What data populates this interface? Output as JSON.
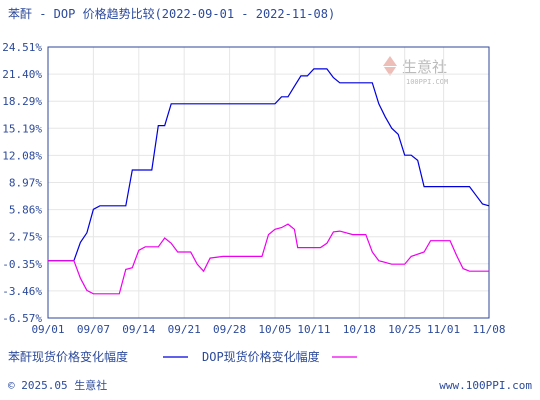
{
  "page": {
    "title": "苯酐 - DOP 价格趋势比较(2022-09-01 - 2022-11-08)",
    "watermark": "生意社",
    "watermark_url": "100PPI.COM",
    "footer_left": "© 2025.05 生意社",
    "footer_right": "www.100PPI.com"
  },
  "colors": {
    "series1": "#0000dd",
    "series2": "#ee00ee",
    "grid": "#e6e6e6",
    "axis": "#2c4a9b",
    "background": "#ffffff"
  },
  "chart_data": {
    "type": "line",
    "title": "苯酐 - DOP 价格趋势比较(2022-09-01 - 2022-11-08)",
    "ylim": [
      -6.57,
      24.51
    ],
    "y_ticks": [
      24.51,
      21.4,
      18.29,
      15.19,
      12.08,
      8.97,
      5.86,
      2.75,
      -0.35,
      -3.46,
      -6.57
    ],
    "y_tick_labels": [
      "24.51%",
      "21.40%",
      "18.29%",
      "15.19%",
      "12.08%",
      "8.97%",
      "5.86%",
      "2.75%",
      "-0.35%",
      "-3.46%",
      "-6.57%"
    ],
    "x_range": [
      0,
      68
    ],
    "x_ticks": [
      0,
      7,
      14,
      21,
      28,
      35,
      41,
      48,
      55,
      61,
      68
    ],
    "x_tick_labels": [
      "09/01",
      "09/07",
      "09/14",
      "09/21",
      "09/28",
      "10/05",
      "10/11",
      "10/18",
      "10/25",
      "11/01",
      "11/08"
    ],
    "grid": true,
    "legend_position": "bottom",
    "series": [
      {
        "name": "苯酐现货价格变化幅度",
        "points": [
          [
            0,
            0
          ],
          [
            4,
            0
          ],
          [
            5,
            2.1
          ],
          [
            6,
            3.2
          ],
          [
            7,
            5.9
          ],
          [
            8,
            6.3
          ],
          [
            10,
            6.3
          ],
          [
            12,
            6.3
          ],
          [
            13,
            10.4
          ],
          [
            16,
            10.4
          ],
          [
            17,
            15.5
          ],
          [
            18,
            15.5
          ],
          [
            19,
            18.0
          ],
          [
            20,
            18.0
          ],
          [
            24,
            18.0
          ],
          [
            26,
            18.0
          ],
          [
            28,
            18.0
          ],
          [
            30,
            18.0
          ],
          [
            35,
            18.0
          ],
          [
            36,
            18.8
          ],
          [
            37,
            18.8
          ],
          [
            38,
            20.0
          ],
          [
            39,
            21.2
          ],
          [
            40,
            21.2
          ],
          [
            41,
            22.0
          ],
          [
            43,
            22.0
          ],
          [
            44,
            21.0
          ],
          [
            45,
            20.4
          ],
          [
            47,
            20.4
          ],
          [
            50,
            20.4
          ],
          [
            51,
            18.0
          ],
          [
            52,
            16.5
          ],
          [
            53,
            15.2
          ],
          [
            54,
            14.5
          ],
          [
            55,
            12.1
          ],
          [
            56,
            12.1
          ],
          [
            57,
            11.5
          ],
          [
            58,
            8.5
          ],
          [
            61,
            8.5
          ],
          [
            64,
            8.5
          ],
          [
            65,
            8.5
          ],
          [
            66,
            7.5
          ],
          [
            67,
            6.5
          ],
          [
            68,
            6.3
          ]
        ]
      },
      {
        "name": "DOP现货价格变化幅度",
        "points": [
          [
            0,
            0
          ],
          [
            4,
            0
          ],
          [
            5,
            -2.0
          ],
          [
            6,
            -3.4
          ],
          [
            7,
            -3.8
          ],
          [
            9,
            -3.8
          ],
          [
            10,
            -3.8
          ],
          [
            11,
            -3.8
          ],
          [
            12,
            -1.0
          ],
          [
            13,
            -0.8
          ],
          [
            14,
            1.2
          ],
          [
            15,
            1.6
          ],
          [
            17,
            1.6
          ],
          [
            18,
            2.6
          ],
          [
            19,
            2.0
          ],
          [
            20,
            1.0
          ],
          [
            22,
            1.0
          ],
          [
            23,
            -0.4
          ],
          [
            24,
            -1.2
          ],
          [
            25,
            0.3
          ],
          [
            27,
            0.5
          ],
          [
            33,
            0.5
          ],
          [
            34,
            3.0
          ],
          [
            35,
            3.6
          ],
          [
            36,
            3.8
          ],
          [
            37,
            4.2
          ],
          [
            38,
            3.6
          ],
          [
            38.5,
            1.5
          ],
          [
            40,
            1.5
          ],
          [
            42,
            1.5
          ],
          [
            43,
            2.0
          ],
          [
            44,
            3.3
          ],
          [
            45,
            3.4
          ],
          [
            47,
            3.0
          ],
          [
            49,
            3.0
          ],
          [
            50,
            1.0
          ],
          [
            51,
            0.0
          ],
          [
            53,
            -0.4
          ],
          [
            55,
            -0.4
          ],
          [
            56,
            0.5
          ],
          [
            58,
            1.0
          ],
          [
            59,
            2.3
          ],
          [
            61,
            2.3
          ],
          [
            62,
            2.3
          ],
          [
            63,
            0.6
          ],
          [
            64,
            -0.9
          ],
          [
            65,
            -1.2
          ],
          [
            68,
            -1.2
          ]
        ]
      }
    ]
  }
}
